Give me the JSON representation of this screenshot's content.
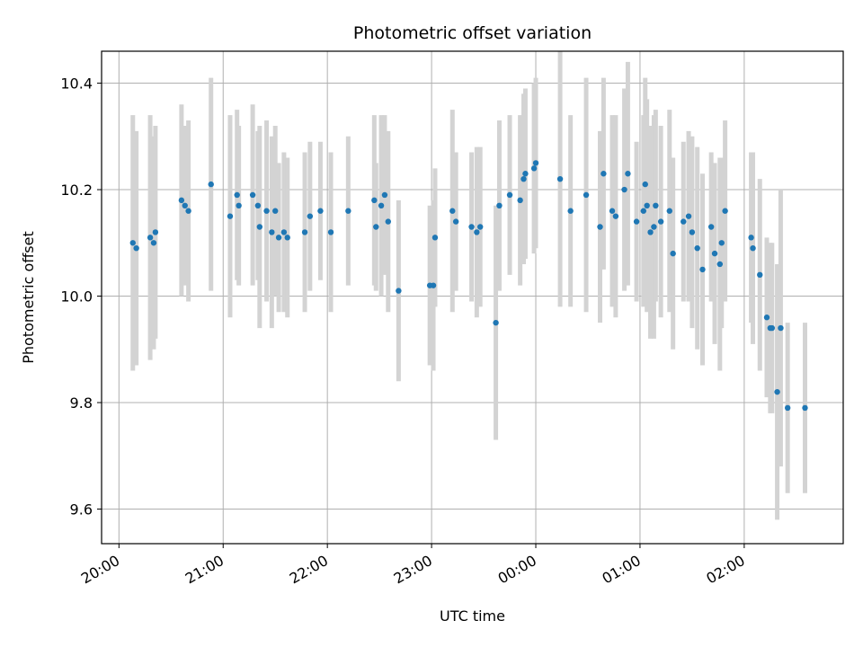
{
  "chart_data": {
    "type": "scatter",
    "title": "Photometric offset variation",
    "xlabel": "UTC time",
    "ylabel": "Photometric offset",
    "x_ticks": [
      "20:00",
      "21:00",
      "22:00",
      "23:00",
      "00:00",
      "01:00",
      "02:00"
    ],
    "y_ticks": [
      "9.6",
      "9.8",
      "10.0",
      "10.2",
      "10.4"
    ],
    "y_tick_values": [
      9.6,
      9.8,
      10.0,
      10.2,
      10.4
    ],
    "xlim": [
      "19:50",
      "26:57"
    ],
    "ylim": [
      9.535,
      10.46
    ],
    "grid": true,
    "colors": {
      "points": "#1f77b4",
      "errorbars": "#d3d3d3",
      "grid": "#b0b0b0"
    },
    "series": [
      {
        "x": [
          "20:08",
          "20:10",
          "20:18",
          "20:20",
          "20:21",
          "20:36",
          "20:38",
          "20:40",
          "20:53",
          "21:04",
          "21:08",
          "21:09",
          "21:17",
          "21:20",
          "21:21",
          "21:25",
          "21:28",
          "21:30",
          "21:32",
          "21:35",
          "21:37",
          "21:47",
          "21:50",
          "21:56",
          "22:02",
          "22:12",
          "22:27",
          "22:28",
          "22:31",
          "22:33",
          "22:35",
          "22:41",
          "22:59",
          "23:01",
          "23:02",
          "23:12",
          "23:14",
          "23:23",
          "23:26",
          "23:28",
          "23:37",
          "23:39",
          "23:45",
          "23:51",
          "23:53",
          "23:54",
          "23:59",
          "23:60",
          "24:14",
          "24:20",
          "24:29",
          "24:37",
          "24:39",
          "24:44",
          "24:46",
          "24:51",
          "24:53",
          "24:58",
          "25:02",
          "25:03",
          "25:04",
          "25:06",
          "25:08",
          "25:09",
          "25:12",
          "25:17",
          "25:19",
          "25:25",
          "25:28",
          "25:30",
          "25:33",
          "25:36",
          "25:41",
          "25:43",
          "25:46",
          "25:47",
          "25:49",
          "26:04",
          "26:05",
          "26:09",
          "26:13",
          "26:15",
          "26:16",
          "26:19",
          "26:21",
          "26:25",
          "26:35"
        ],
        "y": [
          10.1,
          10.09,
          10.11,
          10.1,
          10.12,
          10.18,
          10.17,
          10.16,
          10.21,
          10.15,
          10.19,
          10.17,
          10.19,
          10.17,
          10.13,
          10.16,
          10.12,
          10.16,
          10.11,
          10.12,
          10.11,
          10.12,
          10.15,
          10.16,
          10.12,
          10.16,
          10.18,
          10.13,
          10.17,
          10.19,
          10.14,
          10.01,
          10.02,
          10.02,
          10.11,
          10.16,
          10.14,
          10.13,
          10.12,
          10.13,
          9.95,
          10.17,
          10.19,
          10.18,
          10.22,
          10.23,
          10.24,
          10.25,
          10.22,
          10.16,
          10.19,
          10.13,
          10.23,
          10.16,
          10.15,
          10.2,
          10.23,
          10.14,
          10.16,
          10.21,
          10.17,
          10.12,
          10.13,
          10.17,
          10.14,
          10.16,
          10.08,
          10.14,
          10.15,
          10.12,
          10.09,
          10.05,
          10.13,
          10.08,
          10.06,
          10.1,
          10.16,
          10.11,
          10.09,
          10.04,
          9.96,
          9.94,
          9.94,
          9.82,
          9.94,
          9.79,
          9.79
        ],
        "y_error": [
          0.24,
          0.22,
          0.23,
          0.2,
          0.2,
          0.18,
          0.15,
          0.17,
          0.2,
          0.19,
          0.16,
          0.15,
          0.17,
          0.14,
          0.19,
          0.17,
          0.18,
          0.16,
          0.14,
          0.15,
          0.15,
          0.15,
          0.14,
          0.13,
          0.15,
          0.14,
          0.16,
          0.12,
          0.17,
          0.15,
          0.17,
          0.17,
          0.15,
          0.16,
          0.13,
          0.19,
          0.13,
          0.14,
          0.16,
          0.15,
          0.22,
          0.16,
          0.15,
          0.16,
          0.16,
          0.16,
          0.16,
          0.16,
          0.24,
          0.18,
          0.22,
          0.18,
          0.18,
          0.18,
          0.19,
          0.19,
          0.21,
          0.15,
          0.18,
          0.2,
          0.2,
          0.2,
          0.21,
          0.18,
          0.18,
          0.19,
          0.18,
          0.15,
          0.16,
          0.18,
          0.19,
          0.18,
          0.14,
          0.17,
          0.2,
          0.16,
          0.17,
          0.16,
          0.18,
          0.18,
          0.15,
          0.16,
          0.16,
          0.24,
          0.26,
          0.16,
          0.16
        ]
      }
    ]
  }
}
